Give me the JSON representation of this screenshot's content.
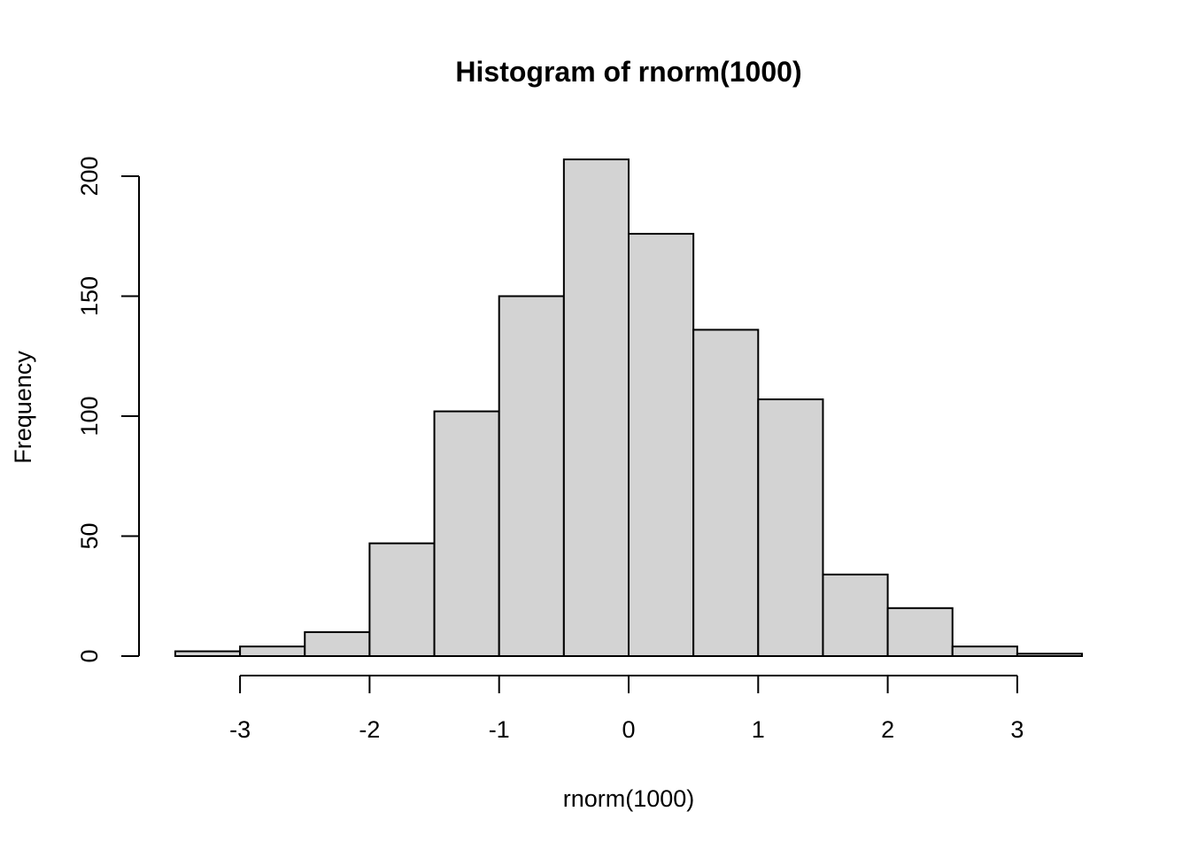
{
  "chart_data": {
    "type": "bar",
    "title": "Histogram of rnorm(1000)",
    "xlabel": "rnorm(1000)",
    "ylabel": "Frequency",
    "bins": [
      {
        "from": -3.5,
        "to": -3.0,
        "count": 2
      },
      {
        "from": -3.0,
        "to": -2.5,
        "count": 4
      },
      {
        "from": -2.5,
        "to": -2.0,
        "count": 10
      },
      {
        "from": -2.0,
        "to": -1.5,
        "count": 47
      },
      {
        "from": -1.5,
        "to": -1.0,
        "count": 102
      },
      {
        "from": -1.0,
        "to": -0.5,
        "count": 150
      },
      {
        "from": -0.5,
        "to": 0.0,
        "count": 207
      },
      {
        "from": 0.0,
        "to": 0.5,
        "count": 176
      },
      {
        "from": 0.5,
        "to": 1.0,
        "count": 136
      },
      {
        "from": 1.0,
        "to": 1.5,
        "count": 107
      },
      {
        "from": 1.5,
        "to": 2.0,
        "count": 34
      },
      {
        "from": 2.0,
        "to": 2.5,
        "count": 20
      },
      {
        "from": 2.5,
        "to": 3.0,
        "count": 4
      },
      {
        "from": 3.0,
        "to": 3.5,
        "count": 1
      }
    ],
    "x_ticks": [
      -3,
      -2,
      -1,
      0,
      1,
      2,
      3
    ],
    "x_tick_labels": [
      "-3",
      "-2",
      "-1",
      "0",
      "1",
      "2",
      "3"
    ],
    "y_ticks": [
      0,
      50,
      100,
      150,
      200
    ],
    "y_tick_labels": [
      "0",
      "50",
      "100",
      "150",
      "200"
    ],
    "xlim": [
      -3.5,
      3.5
    ],
    "ylim": [
      0,
      200
    ],
    "grid": false,
    "legend": "none",
    "bar_fill_color": "#d3d3d3",
    "bar_border_color": "#000000"
  }
}
